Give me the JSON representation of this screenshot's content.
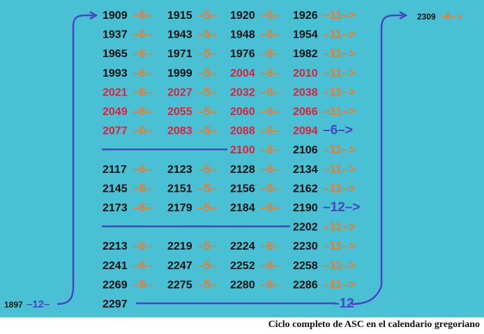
{
  "caption": "Ciclo completo de ASC en el calendario gregoriano",
  "colors": {
    "background": "#49c0d3",
    "year_default": "#111111",
    "year_highlight": "#e0203a",
    "gap": "#f07a2a",
    "gap_special": "#4a44c4",
    "line": "#4a44c4"
  },
  "rows": [
    [
      {
        "year": "1909"
      },
      {
        "gap": "6"
      },
      {
        "year": "1915"
      },
      {
        "gap": "5"
      },
      {
        "year": "1920"
      },
      {
        "gap": "6"
      },
      {
        "year": "1926"
      },
      {
        "gap": "11",
        "arrow": true
      }
    ],
    [
      {
        "year": "1937"
      },
      {
        "gap": "6"
      },
      {
        "year": "1943"
      },
      {
        "gap": "5"
      },
      {
        "year": "1948"
      },
      {
        "gap": "6"
      },
      {
        "year": "1954"
      },
      {
        "gap": "11",
        "arrow": true
      }
    ],
    [
      {
        "year": "1965"
      },
      {
        "gap": "6"
      },
      {
        "year": "1971"
      },
      {
        "gap": "5"
      },
      {
        "year": "1976"
      },
      {
        "gap": "6"
      },
      {
        "year": "1982"
      },
      {
        "gap": "11",
        "arrow": true
      }
    ],
    [
      {
        "year": "1993"
      },
      {
        "gap": "6"
      },
      {
        "year": "1999"
      },
      {
        "gap": "5"
      },
      {
        "year": "2004",
        "hl": true
      },
      {
        "gap": "6"
      },
      {
        "year": "2010",
        "hl": true
      },
      {
        "gap": "11",
        "arrow": true
      }
    ],
    [
      {
        "year": "2021",
        "hl": true
      },
      {
        "gap": "6"
      },
      {
        "year": "2027",
        "hl": true
      },
      {
        "gap": "5"
      },
      {
        "year": "2032",
        "hl": true
      },
      {
        "gap": "6"
      },
      {
        "year": "2038",
        "hl": true
      },
      {
        "gap": "11",
        "arrow": true
      }
    ],
    [
      {
        "year": "2049",
        "hl": true
      },
      {
        "gap": "6"
      },
      {
        "year": "2055",
        "hl": true
      },
      {
        "gap": "5"
      },
      {
        "year": "2060",
        "hl": true
      },
      {
        "gap": "6"
      },
      {
        "year": "2066",
        "hl": true
      },
      {
        "gap": "11",
        "arrow": true
      }
    ],
    [
      {
        "year": "2077",
        "hl": true
      },
      {
        "gap": "6"
      },
      {
        "year": "2083",
        "hl": true
      },
      {
        "gap": "5"
      },
      {
        "year": "2088",
        "hl": true
      },
      {
        "gap": "6"
      },
      {
        "year": "2094",
        "hl": true
      },
      {
        "gap": "6",
        "arrow": true,
        "special": true
      }
    ],
    [
      {
        "line": true
      },
      {
        "year": "2100",
        "hl": true
      },
      {
        "gap": "6"
      },
      {
        "year": "2106"
      },
      {
        "gap": "11",
        "arrow": true
      }
    ],
    [
      {
        "year": "2117"
      },
      {
        "gap": "6"
      },
      {
        "year": "2123"
      },
      {
        "gap": "5"
      },
      {
        "year": "2128"
      },
      {
        "gap": "6"
      },
      {
        "year": "2134"
      },
      {
        "gap": "11",
        "arrow": true
      }
    ],
    [
      {
        "year": "2145"
      },
      {
        "gap": "6"
      },
      {
        "year": "2151"
      },
      {
        "gap": "5"
      },
      {
        "year": "2156"
      },
      {
        "gap": "6"
      },
      {
        "year": "2162"
      },
      {
        "gap": "11",
        "arrow": true
      }
    ],
    [
      {
        "year": "2173"
      },
      {
        "gap": "6"
      },
      {
        "year": "2179"
      },
      {
        "gap": "5"
      },
      {
        "year": "2184"
      },
      {
        "gap": "6"
      },
      {
        "year": "2190"
      },
      {
        "gap": "12",
        "arrow": true,
        "special": true
      }
    ],
    [
      {
        "line": true
      },
      {
        "year": "2202"
      },
      {
        "gap": "11",
        "arrow": true
      }
    ],
    [
      {
        "year": "2213"
      },
      {
        "gap": "6"
      },
      {
        "year": "2219"
      },
      {
        "gap": "5"
      },
      {
        "year": "2224"
      },
      {
        "gap": "6"
      },
      {
        "year": "2230"
      },
      {
        "gap": "11",
        "arrow": true
      }
    ],
    [
      {
        "year": "2241"
      },
      {
        "gap": "6"
      },
      {
        "year": "2247"
      },
      {
        "gap": "5"
      },
      {
        "year": "2252"
      },
      {
        "gap": "6"
      },
      {
        "year": "2258"
      },
      {
        "gap": "11",
        "arrow": true
      }
    ],
    [
      {
        "year": "2269"
      },
      {
        "gap": "6"
      },
      {
        "year": "2275"
      },
      {
        "gap": "5"
      },
      {
        "year": "2280"
      },
      {
        "gap": "6"
      },
      {
        "year": "2286"
      },
      {
        "gap": "11",
        "arrow": true
      }
    ],
    [
      {
        "year": "2297"
      },
      {
        "line": true
      },
      {
        "gap": "12",
        "special": true
      }
    ]
  ],
  "start_label": {
    "year": "1897",
    "gap": "12"
  },
  "end_label": {
    "year": "2309",
    "gap": "6"
  }
}
